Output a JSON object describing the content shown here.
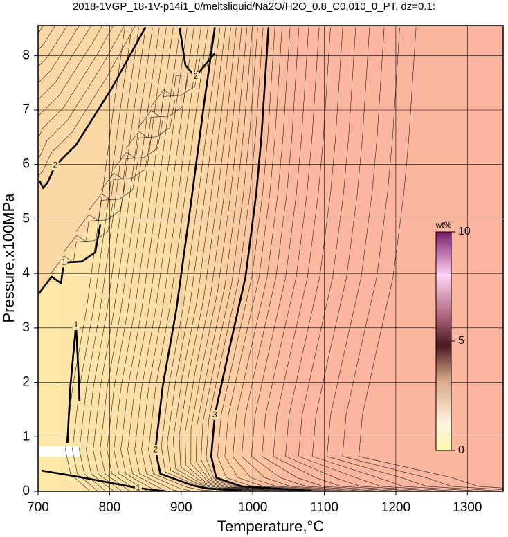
{
  "chart_data": {
    "type": "contour",
    "title": "2018-1VGP_18-1V-p14i1_0/meltsliquid/Na2O/H2O_0.8_C0.010_0_PT, dz=0.1:",
    "x_label": "Temperature,°C",
    "y_label": "Pressure,x100MPa",
    "xlim": [
      700,
      1350
    ],
    "ylim": [
      0,
      8.55
    ],
    "xticks": [
      700,
      800,
      900,
      1000,
      1100,
      1200,
      1300
    ],
    "yticks": [
      0,
      1,
      2,
      3,
      4,
      5,
      6,
      7,
      8
    ],
    "grid": true,
    "contours": [
      {
        "level": 3,
        "T": [
          1022,
          1012,
          1005,
          990,
          966,
          947,
          942,
          949,
          985,
          1082
        ],
        "P": [
          8.52,
          6.49,
          5.47,
          3.94,
          2.54,
          1.4,
          0.64,
          0.25,
          0.09,
          0.01
        ]
      },
      {
        "level": 2,
        "T": [
          947,
          932,
          913,
          893,
          874,
          864,
          871,
          918,
          937,
          985
        ],
        "P": [
          8.52,
          7.12,
          5.22,
          3.31,
          1.91,
          0.76,
          0.32,
          0.1,
          0.05,
          0.01
        ]
      },
      {
        "level": 2,
        "T": [
          850,
          802,
          753,
          724,
          713,
          707,
          702
        ],
        "P": [
          8.52,
          7.38,
          6.36,
          5.98,
          5.66,
          5.57,
          5.7
        ]
      },
      {
        "level": 2,
        "T": [
          898,
          906,
          920,
          937,
          947
        ],
        "P": [
          8.5,
          7.82,
          7.61,
          7.89,
          8.04
        ]
      },
      {
        "level": 1,
        "T": [
          787,
          780,
          761,
          736,
          732,
          719,
          701
        ],
        "P": [
          4.9,
          4.39,
          4.22,
          4.2,
          3.82,
          3.94,
          3.63
        ]
      },
      {
        "level": 1,
        "T": [
          741,
          745,
          753,
          756,
          758
        ],
        "P": [
          0.89,
          1.91,
          3.05,
          2.29,
          1.65
        ]
      },
      {
        "level": 1,
        "T": [
          705,
          763,
          840,
          879
        ],
        "P": [
          0.38,
          0.25,
          0.06,
          0
        ]
      }
    ],
    "colorbar": {
      "label": "wt%",
      "lim": [
        0,
        10
      ],
      "ticks": [
        0,
        5,
        10
      ]
    }
  }
}
